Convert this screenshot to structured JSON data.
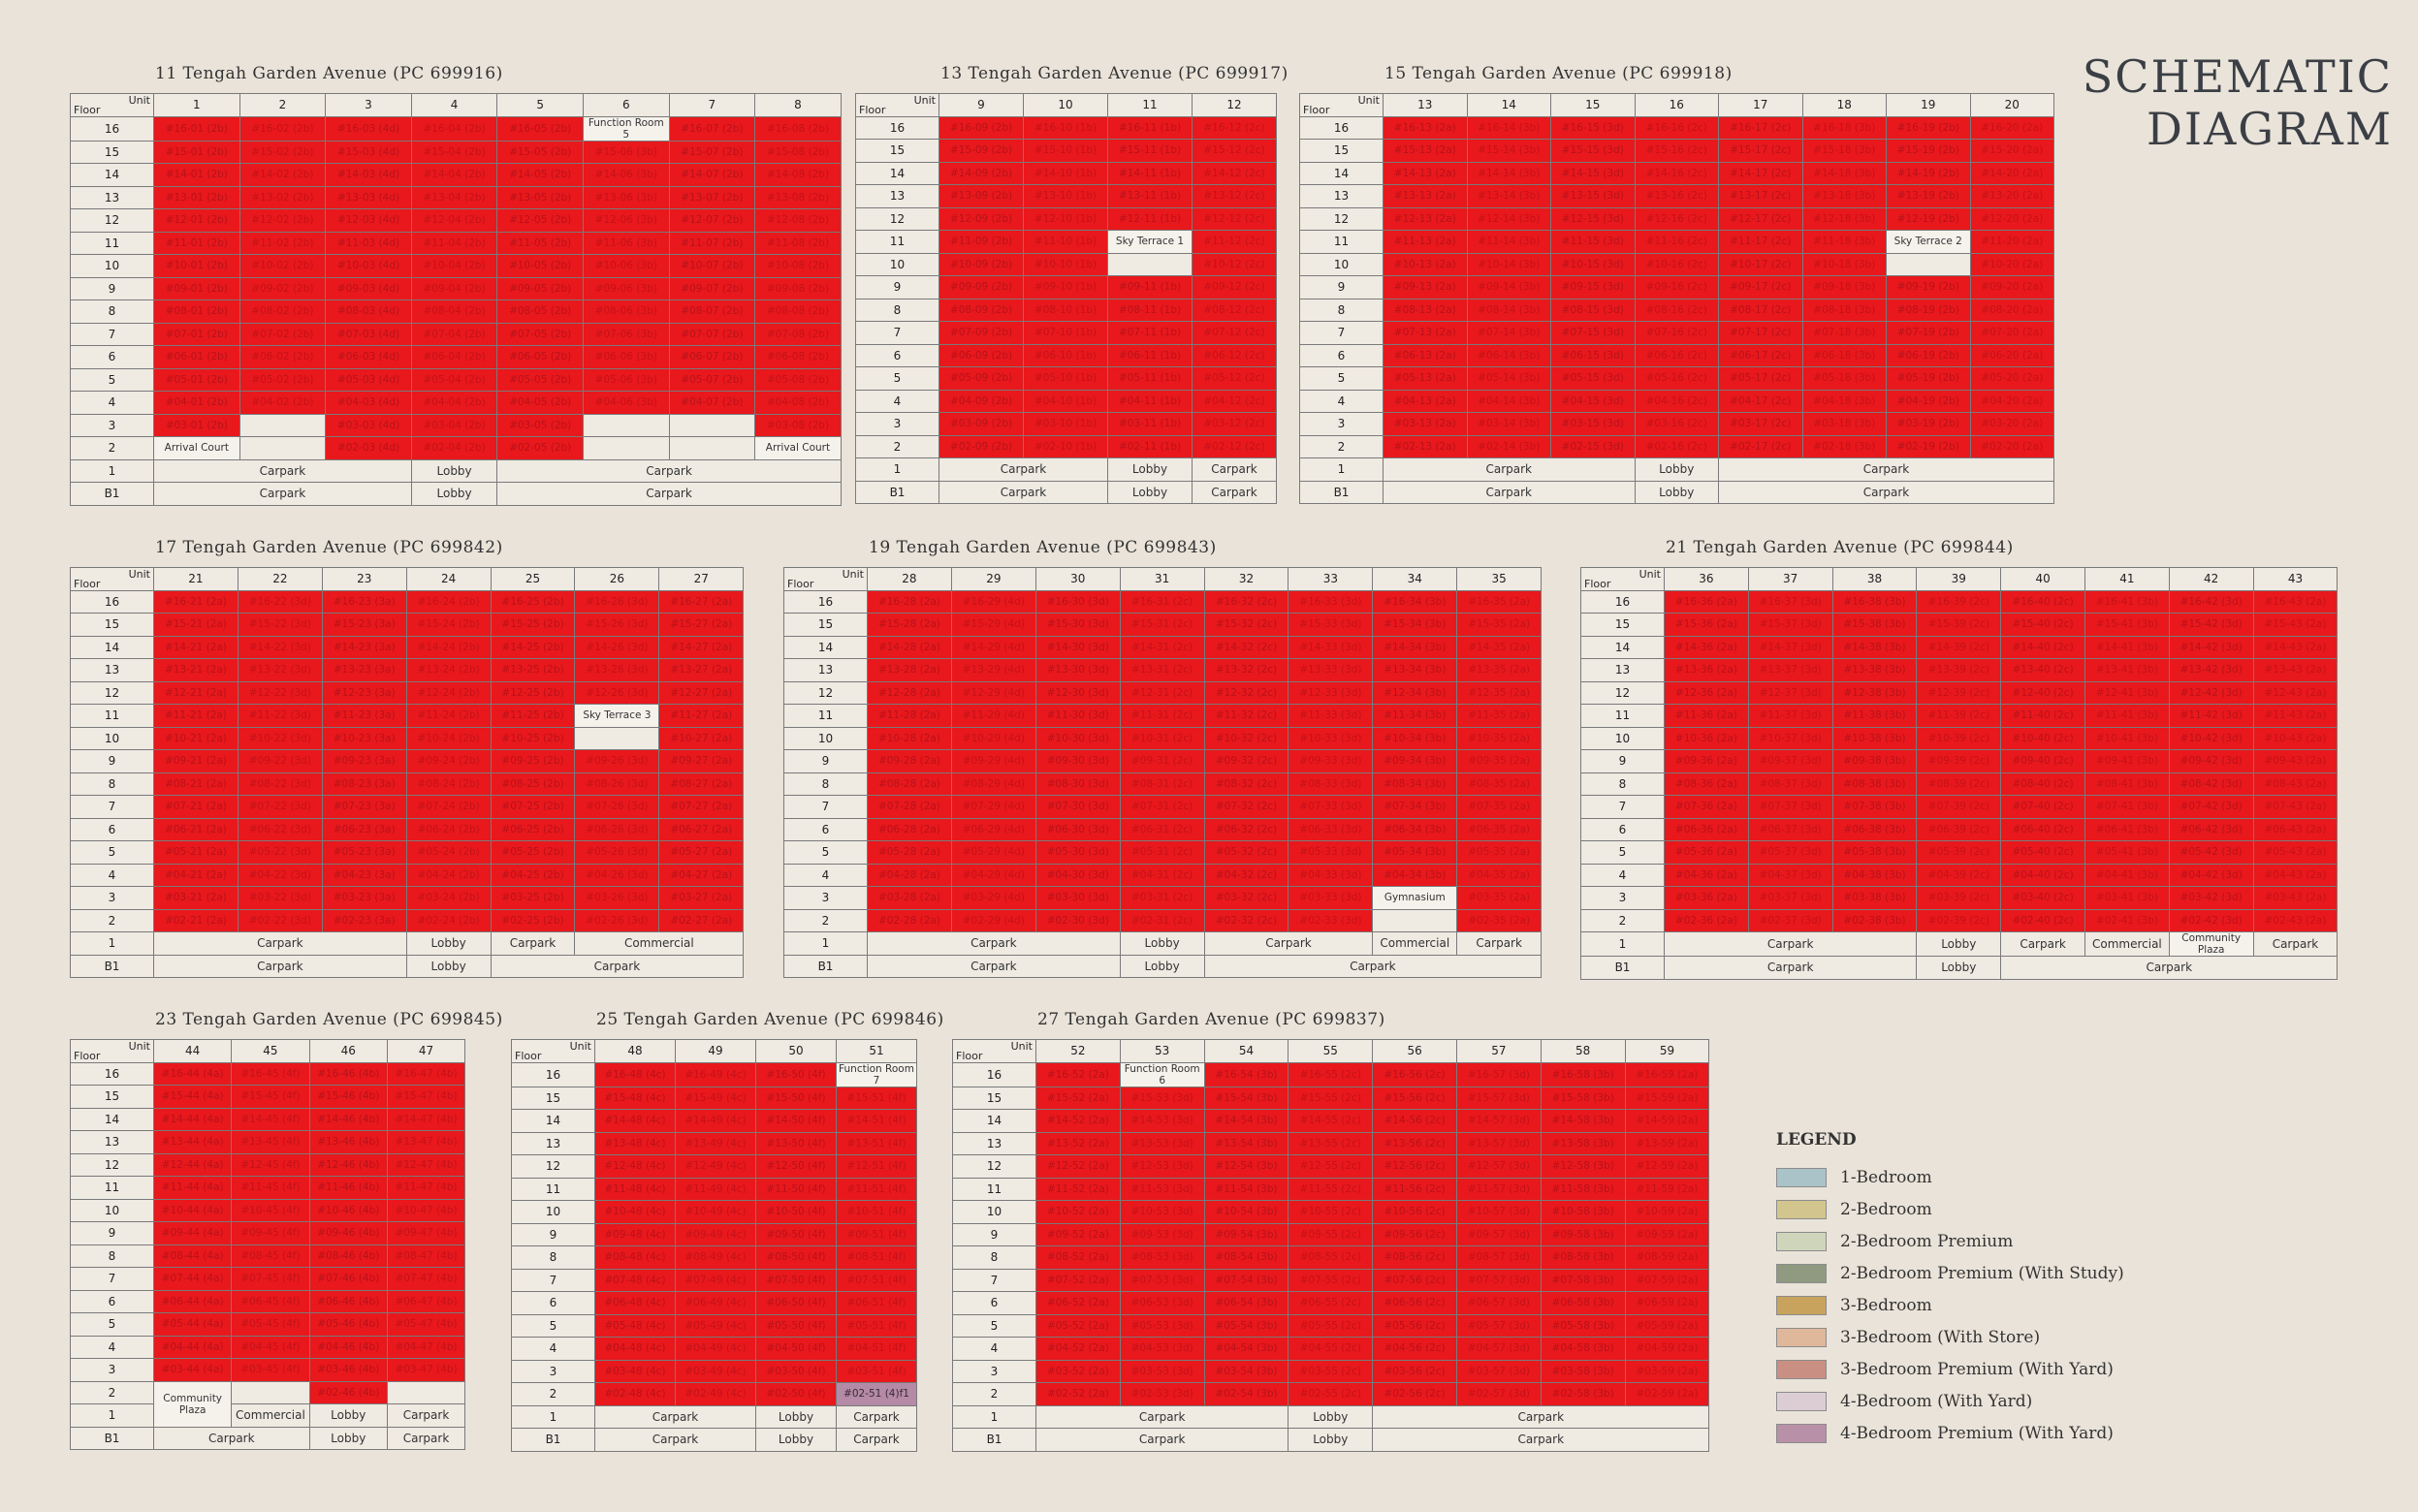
{
  "title_lines": [
    "SCHEMATIC",
    "DIAGRAM"
  ],
  "floors": [
    "16",
    "15",
    "14",
    "13",
    "12",
    "11",
    "10",
    "9",
    "8",
    "7",
    "6",
    "5",
    "4",
    "3",
    "2",
    "1",
    "B1"
  ],
  "legend": {
    "title": "LEGEND",
    "items": [
      {
        "label": "1-Bedroom",
        "color": "#a9c3c8"
      },
      {
        "label": "2-Bedroom",
        "color": "#d3c58e"
      },
      {
        "label": "2-Bedroom Premium",
        "color": "#cfd5ba"
      },
      {
        "label": "2-Bedroom Premium (With Study)",
        "color": "#8f9a80"
      },
      {
        "label": "3-Bedroom",
        "color": "#c7a35e"
      },
      {
        "label": "3-Bedroom (With Store)",
        "color": "#dfb79b"
      },
      {
        "label": "3-Bedroom Premium (With Yard)",
        "color": "#c98f83"
      },
      {
        "label": "4-Bedroom (With Yard)",
        "color": "#dccdd4"
      },
      {
        "label": "4-Bedroom Premium (With Yard)",
        "color": "#b890a8"
      }
    ]
  },
  "blocks": [
    {
      "title": "11 Tengah Garden Avenue (PC 699916)",
      "units": [
        "1",
        "2",
        "3",
        "4",
        "5",
        "6",
        "7",
        "8"
      ],
      "types": [
        "2b",
        "2b",
        "4d",
        "2b",
        "2b",
        "3b",
        "2b",
        "2b"
      ],
      "specials": [
        {
          "floor": "16",
          "col": 5,
          "text": "Function Room 5"
        },
        {
          "floor": "3",
          "col": 1,
          "text": ""
        },
        {
          "floor": "3",
          "col": 5,
          "text": ""
        },
        {
          "floor": "3",
          "col": 6,
          "text": ""
        },
        {
          "floor": "2",
          "col": 0,
          "text": "Arrival Court"
        },
        {
          "floor": "2",
          "col": 1,
          "text": ""
        },
        {
          "floor": "2",
          "col": 5,
          "text": ""
        },
        {
          "floor": "2",
          "col": 6,
          "text": ""
        },
        {
          "floor": "2",
          "col": 7,
          "text": "Arrival Court"
        }
      ],
      "base": {
        "1": [
          {
            "span": 3,
            "text": "Carpark"
          },
          {
            "span": 1,
            "text": "Lobby"
          },
          {
            "span": 4,
            "text": "Carpark"
          }
        ],
        "B1": [
          {
            "span": 3,
            "text": "Carpark"
          },
          {
            "span": 1,
            "text": "Lobby"
          },
          {
            "span": 4,
            "text": "Carpark"
          }
        ]
      }
    },
    {
      "title": "13 Tengah Garden Avenue (PC 699917)",
      "units": [
        "9",
        "10",
        "11",
        "12"
      ],
      "types": [
        "2b",
        "1b",
        "1b",
        "2c"
      ],
      "specials": [
        {
          "floor": "11",
          "col": 2,
          "text": "Sky Terrace 1"
        },
        {
          "floor": "10",
          "col": 2,
          "text": ""
        }
      ],
      "base": {
        "1": [
          {
            "span": 2,
            "text": "Carpark"
          },
          {
            "span": 1,
            "text": "Lobby"
          },
          {
            "span": 1,
            "text": "Carpark"
          }
        ],
        "B1": [
          {
            "span": 2,
            "text": "Carpark"
          },
          {
            "span": 1,
            "text": "Lobby"
          },
          {
            "span": 1,
            "text": "Carpark"
          }
        ]
      }
    },
    {
      "title": "15 Tengah Garden Avenue (PC 699918)",
      "units": [
        "13",
        "14",
        "15",
        "16",
        "17",
        "18",
        "19",
        "20"
      ],
      "types": [
        "2a",
        "3b",
        "3d",
        "2c",
        "2c",
        "3b",
        "2b",
        "2a"
      ],
      "specials": [
        {
          "floor": "11",
          "col": 6,
          "text": "Sky Terrace 2"
        },
        {
          "floor": "10",
          "col": 6,
          "text": ""
        }
      ],
      "base": {
        "1": [
          {
            "span": 3,
            "text": "Carpark"
          },
          {
            "span": 1,
            "text": "Lobby"
          },
          {
            "span": 4,
            "text": "Carpark"
          }
        ],
        "B1": [
          {
            "span": 3,
            "text": "Carpark"
          },
          {
            "span": 1,
            "text": "Lobby"
          },
          {
            "span": 4,
            "text": "Carpark"
          }
        ]
      }
    },
    {
      "title": "17 Tengah Garden Avenue (PC 699842)",
      "units": [
        "21",
        "22",
        "23",
        "24",
        "25",
        "26",
        "27"
      ],
      "types": [
        "2a",
        "3d",
        "3a",
        "2b",
        "2b",
        "3d",
        "2a"
      ],
      "specials": [
        {
          "floor": "11",
          "col": 5,
          "text": "Sky Terrace 3"
        },
        {
          "floor": "10",
          "col": 5,
          "text": ""
        }
      ],
      "base": {
        "1": [
          {
            "span": 3,
            "text": "Carpark"
          },
          {
            "span": 1,
            "text": "Lobby"
          },
          {
            "span": 1,
            "text": "Carpark"
          },
          {
            "span": 2,
            "text": "Commercial"
          }
        ],
        "B1": [
          {
            "span": 3,
            "text": "Carpark"
          },
          {
            "span": 1,
            "text": "Lobby"
          },
          {
            "span": 3,
            "text": "Carpark"
          }
        ]
      }
    },
    {
      "title": "19 Tengah Garden Avenue (PC 699843)",
      "units": [
        "28",
        "29",
        "30",
        "31",
        "32",
        "33",
        "34",
        "35"
      ],
      "types": [
        "2a",
        "4d",
        "3d",
        "2c",
        "2c",
        "3d",
        "3b",
        "2a"
      ],
      "specials": [
        {
          "floor": "3",
          "col": 6,
          "text": "Gymnasium"
        },
        {
          "floor": "2",
          "col": 6,
          "text": ""
        }
      ],
      "base": {
        "1": [
          {
            "span": 3,
            "text": "Carpark"
          },
          {
            "span": 1,
            "text": "Lobby"
          },
          {
            "span": 2,
            "text": "Carpark"
          },
          {
            "span": 1,
            "text": "Commercial"
          },
          {
            "span": 1,
            "text": "Carpark"
          }
        ],
        "B1": [
          {
            "span": 3,
            "text": "Carpark"
          },
          {
            "span": 1,
            "text": "Lobby"
          },
          {
            "span": 4,
            "text": "Carpark"
          }
        ]
      }
    },
    {
      "title": "21 Tengah Garden Avenue (PC 699844)",
      "units": [
        "36",
        "37",
        "38",
        "39",
        "40",
        "41",
        "42",
        "43"
      ],
      "types": [
        "2a",
        "3d",
        "3b",
        "2c",
        "2c",
        "3b",
        "3d",
        "2a"
      ],
      "specials": [
        {
          "floor": "1",
          "col": 6,
          "text": "Community Plaza",
          "rowspan": 2
        }
      ],
      "base": {
        "1": [
          {
            "span": 3,
            "text": "Carpark"
          },
          {
            "span": 1,
            "text": "Lobby"
          },
          {
            "span": 1,
            "text": "Carpark"
          },
          {
            "span": 1,
            "text": "Commercial"
          },
          {
            "span": 1,
            "text": "__special__"
          },
          {
            "span": 1,
            "text": "Carpark"
          }
        ],
        "B1": [
          {
            "span": 3,
            "text": "Carpark"
          },
          {
            "span": 1,
            "text": "Lobby"
          },
          {
            "span": 4,
            "text": "Carpark"
          }
        ]
      }
    },
    {
      "title": "23 Tengah Garden Avenue (PC 699845)",
      "units": [
        "44",
        "45",
        "46",
        "47"
      ],
      "types": [
        "4a",
        "4f",
        "4b",
        "4b"
      ],
      "specials": [
        {
          "floor": "2",
          "col": 0,
          "text": "Community Plaza",
          "rowspan": 2
        },
        {
          "floor": "2",
          "col": 1,
          "text": ""
        },
        {
          "floor": "2",
          "col": 3,
          "text": ""
        }
      ],
      "base": {
        "1": [
          {
            "span": 1,
            "text": "__special__"
          },
          {
            "span": 1,
            "text": "Commercial"
          },
          {
            "span": 1,
            "text": "Lobby"
          },
          {
            "span": 1,
            "text": "Carpark"
          }
        ],
        "B1": [
          {
            "span": 2,
            "text": "Carpark"
          },
          {
            "span": 1,
            "text": "Lobby"
          },
          {
            "span": 1,
            "text": "Carpark"
          }
        ]
      }
    },
    {
      "title": "25 Tengah Garden Avenue (PC 699846)",
      "units": [
        "48",
        "49",
        "50",
        "51"
      ],
      "types": [
        "4c",
        "4c",
        "4f",
        "4f"
      ],
      "specials": [
        {
          "floor": "16",
          "col": 3,
          "text": "Function Room 7"
        }
      ],
      "purple": [
        {
          "floor": "2",
          "col": 3,
          "text": "#02-51 (4)f1"
        }
      ],
      "base": {
        "1": [
          {
            "span": 2,
            "text": "Carpark"
          },
          {
            "span": 1,
            "text": "Lobby"
          },
          {
            "span": 1,
            "text": "Carpark"
          }
        ],
        "B1": [
          {
            "span": 2,
            "text": "Carpark"
          },
          {
            "span": 1,
            "text": "Lobby"
          },
          {
            "span": 1,
            "text": "Carpark"
          }
        ]
      }
    },
    {
      "title": "27 Tengah Garden Avenue (PC 699837)",
      "units": [
        "52",
        "53",
        "54",
        "55",
        "56",
        "57",
        "58",
        "59"
      ],
      "types": [
        "2a",
        "3d",
        "3b",
        "2c",
        "2c",
        "3d",
        "3b",
        "2a"
      ],
      "specials": [
        {
          "floor": "16",
          "col": 1,
          "text": "Function Room 6"
        }
      ],
      "base": {
        "1": [
          {
            "span": 3,
            "text": "Carpark"
          },
          {
            "span": 1,
            "text": "Lobby"
          },
          {
            "span": 4,
            "text": "Carpark"
          }
        ],
        "B1": [
          {
            "span": 3,
            "text": "Carpark"
          },
          {
            "span": 1,
            "text": "Lobby"
          },
          {
            "span": 4,
            "text": "Carpark"
          }
        ]
      }
    }
  ]
}
